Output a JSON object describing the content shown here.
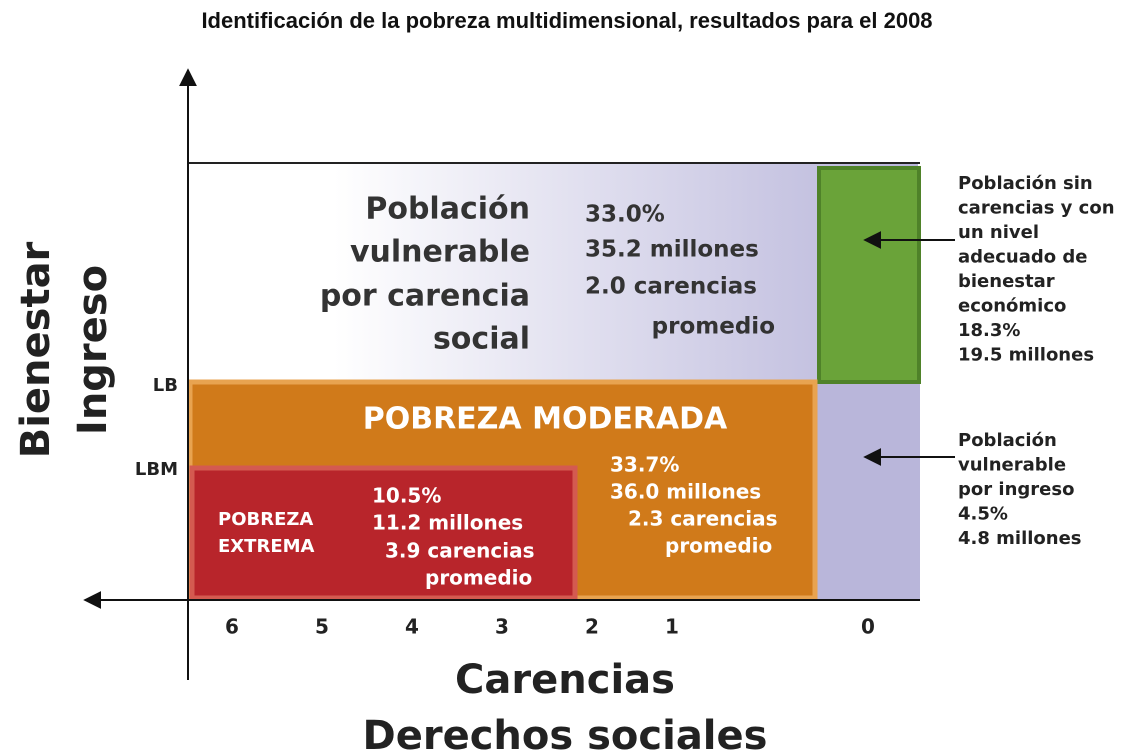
{
  "title": "Identificación de la pobreza multidimensional, resultados para el 2008",
  "axes": {
    "y_labels": [
      "Bienestar",
      "Ingreso"
    ],
    "x_labels": [
      "Carencias",
      "Derechos sociales"
    ],
    "y_markers": [
      "LB",
      "LBM"
    ],
    "x_ticks": [
      "6",
      "5",
      "4",
      "3",
      "2",
      "1",
      "0"
    ]
  },
  "regions": {
    "vulnerable_carencia": {
      "label_lines": [
        "Población",
        "vulnerable",
        "por carencia",
        "social"
      ],
      "stats_lines": [
        "33.0%",
        "35.2 millones",
        "2.0 carencias",
        "promedio"
      ]
    },
    "pobreza_moderada": {
      "label": "POBREZA MODERADA",
      "stats_lines": [
        "33.7%",
        "36.0 millones",
        "2.3 carencias",
        "promedio"
      ]
    },
    "pobreza_extrema": {
      "label_lines": [
        "POBREZA",
        "EXTREMA"
      ],
      "stats_lines": [
        "10.5%",
        "11.2 millones",
        "3.9 carencias",
        "promedio"
      ]
    }
  },
  "notes": {
    "sin_carencias": [
      "Población sin",
      "carencias y con",
      "un nivel",
      "adecuado de",
      "bienestar",
      "económico",
      "18.3%",
      "19.5 millones"
    ],
    "vulnerable_ingreso": [
      "Población",
      "vulnerable",
      "por ingreso",
      "4.5%",
      "4.8 millones"
    ]
  }
}
